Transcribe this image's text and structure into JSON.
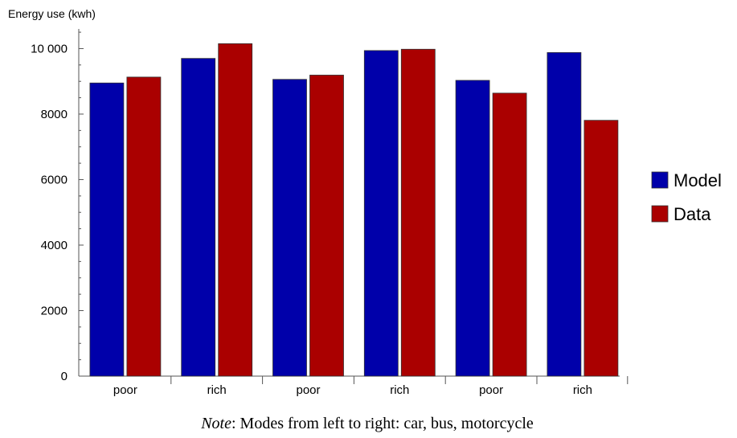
{
  "chart_data": {
    "type": "bar",
    "ylabel": "Energy use (kwh)",
    "categories": [
      "poor",
      "rich",
      "poor",
      "rich",
      "poor",
      "rich"
    ],
    "series": [
      {
        "name": "Model",
        "color": "#0000aa",
        "values": [
          8950,
          9700,
          9060,
          9940,
          9030,
          9880
        ]
      },
      {
        "name": "Data",
        "color": "#aa0000",
        "values": [
          9130,
          10150,
          9190,
          9980,
          8640,
          7810
        ]
      }
    ],
    "ylim": [
      0,
      10600
    ],
    "yticks": [
      0,
      2000,
      4000,
      6000,
      8000,
      10000
    ],
    "ytick_labels": [
      "0",
      "2000",
      "4000",
      "6000",
      "8000",
      "10 000"
    ],
    "legend": "right",
    "grid": false
  },
  "note": {
    "label": "Note",
    "text": ": Modes from left to right: car, bus, motorcycle"
  }
}
